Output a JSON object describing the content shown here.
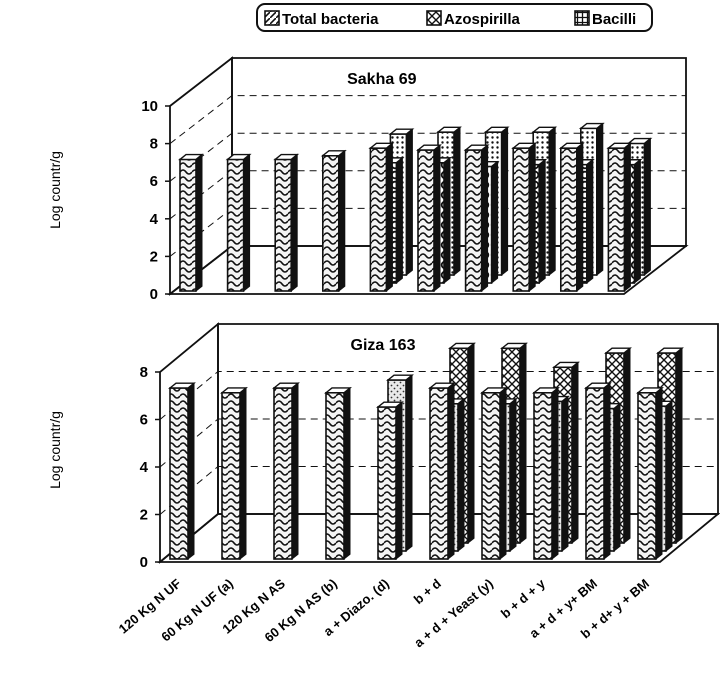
{
  "legend": {
    "items": [
      {
        "label": "Total bacteria",
        "pattern": "wave"
      },
      {
        "label": "Azospirilla",
        "pattern": "circles"
      },
      {
        "label": "Bacilli",
        "pattern": "dots"
      }
    ]
  },
  "chart_data": [
    {
      "type": "bar",
      "title": "Sakha 69",
      "ylabel": "Log countr/g",
      "ylim": [
        0,
        10
      ],
      "yticks": [
        "0",
        "2",
        "4",
        "6",
        "8",
        "10"
      ],
      "grid": true,
      "categories": [
        "120 Kg N UF",
        "60 Kg N UF (a)",
        "120 Kg N AS",
        "60 Kg N AS (b)",
        "a + Diazo. (d)",
        "b + d",
        "a + d + Yeast (y)",
        "b + d + y",
        "a + d + y+ BM",
        "b + d+ y + BM"
      ],
      "series": [
        {
          "name": "Total bacteria",
          "values": [
            7.0,
            7.0,
            7.0,
            7.2,
            7.6,
            7.5,
            7.5,
            7.6,
            7.6,
            7.6
          ]
        },
        {
          "name": "Azospirilla",
          "values": [
            null,
            null,
            null,
            null,
            6.4,
            6.4,
            6.2,
            6.3,
            6.3,
            6.3
          ]
        },
        {
          "name": "Bacilli",
          "values": [
            null,
            null,
            null,
            null,
            7.5,
            7.6,
            7.6,
            7.6,
            7.8,
            7.0
          ]
        }
      ]
    },
    {
      "type": "bar",
      "title": "Giza 163",
      "ylabel": "Log countr/g",
      "ylim": [
        0,
        8
      ],
      "yticks": [
        "0",
        "2",
        "4",
        "6",
        "8"
      ],
      "grid": true,
      "categories": [
        "120 Kg N UF",
        "60 Kg N UF (a)",
        "120 Kg N AS",
        "60 Kg N AS (b)",
        "a + Diazo. (d)",
        "b + d",
        "a + d + Yeast (y)",
        "b + d + y",
        "a + d + y+ BM",
        "b + d+ y + BM"
      ],
      "series": [
        {
          "name": "Total bacteria",
          "values": [
            7.2,
            7.0,
            7.2,
            7.0,
            6.4,
            7.2,
            7.0,
            7.0,
            7.2,
            7.0
          ]
        },
        {
          "name": "Azospirilla",
          "values": [
            null,
            null,
            null,
            null,
            7.2,
            6.2,
            6.2,
            6.3,
            6.0,
            6.1
          ]
        },
        {
          "name": "Bacilli",
          "values": [
            null,
            null,
            null,
            null,
            null,
            8.2,
            8.2,
            7.4,
            8.0,
            8.0
          ]
        }
      ]
    }
  ]
}
